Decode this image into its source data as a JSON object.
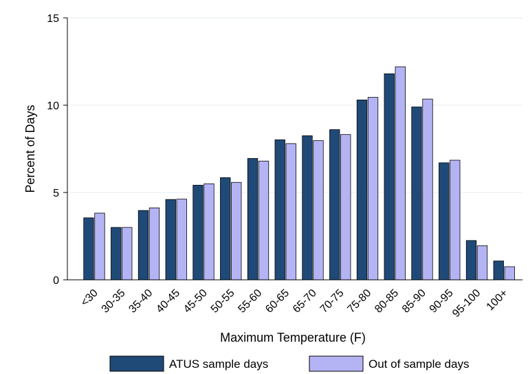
{
  "chart_data": {
    "type": "bar",
    "categories": [
      "<30",
      "30-35",
      "35-40",
      "40-45",
      "45-50",
      "50-55",
      "55-60",
      "60-65",
      "65-70",
      "70-75",
      "75-80",
      "80-85",
      "85-90",
      "90-95",
      "95-100",
      "100+"
    ],
    "series": [
      {
        "name": "ATUS sample days",
        "color": "#1f4a78",
        "values": [
          3.55,
          3.0,
          3.97,
          4.6,
          5.42,
          5.85,
          6.95,
          8.02,
          8.25,
          8.6,
          10.3,
          11.8,
          9.9,
          6.7,
          2.25,
          1.08
        ]
      },
      {
        "name": "Out of sample days",
        "color": "#b4b4f5",
        "values": [
          3.82,
          3.0,
          4.12,
          4.62,
          5.5,
          5.58,
          6.8,
          7.8,
          7.97,
          8.32,
          10.45,
          12.2,
          10.35,
          6.85,
          1.95,
          0.75
        ]
      }
    ],
    "xlabel": "Maximum Temperature (F)",
    "ylabel": "Percent of Days",
    "ylim": [
      0,
      15
    ],
    "yticks": [
      0,
      5,
      10,
      15
    ],
    "grid": true,
    "legend": "bottom"
  }
}
